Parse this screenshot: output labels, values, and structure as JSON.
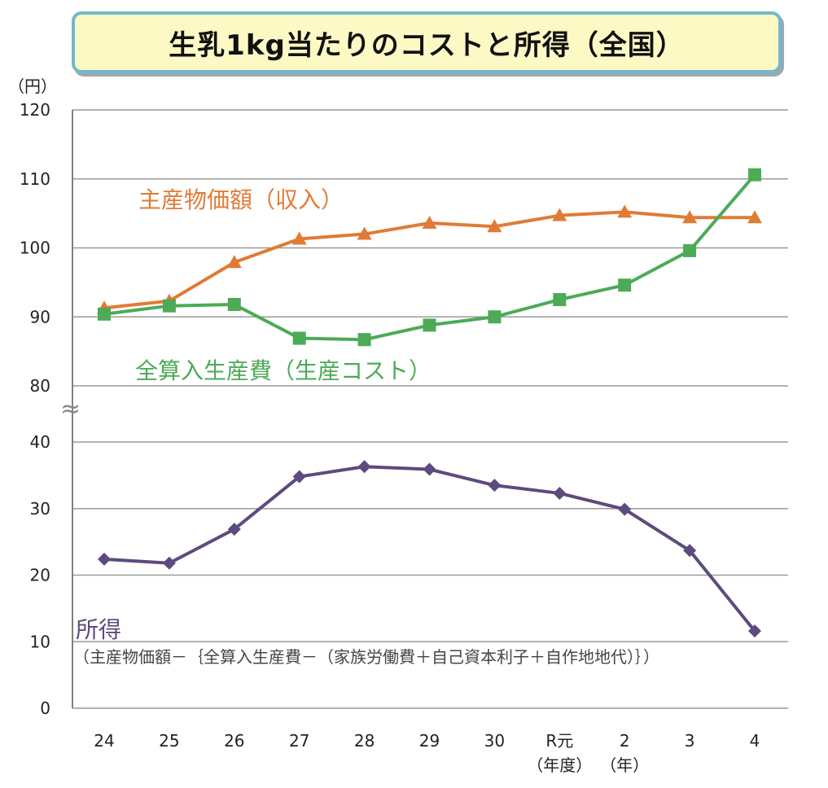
{
  "colors": {
    "income": "#e07b35",
    "cost": "#4daa57",
    "profit": "#5d4a7e",
    "grid": "#9a9a9a",
    "axis": "#808080"
  },
  "chart_data": {
    "type": "line",
    "title": "生乳1kg当たりのコストと所得（全国）",
    "ylabel": "（円）",
    "xlabel": "",
    "axis_break": "≈",
    "upper_ticks": [
      80,
      90,
      100,
      110,
      120
    ],
    "lower_ticks": [
      0,
      10,
      20,
      30,
      40
    ],
    "upper_ylim": [
      80,
      120
    ],
    "lower_ylim": [
      0,
      40
    ],
    "categories": [
      "24",
      "25",
      "26",
      "27",
      "28",
      "29",
      "30",
      "R元",
      "2",
      "3",
      "4"
    ],
    "category_sublabels": [
      "",
      "",
      "",
      "",
      "",
      "",
      "",
      "（年度）",
      "（年）",
      "",
      ""
    ],
    "series": [
      {
        "name": "主産物価額（収入）",
        "panel": "upper",
        "marker": "triangle",
        "color_key": "income",
        "values": [
          91.3,
          92.3,
          97.9,
          101.3,
          102.0,
          103.6,
          103.1,
          104.7,
          105.2,
          104.4,
          104.4
        ]
      },
      {
        "name": "全算入生産費（生産コスト）",
        "panel": "upper",
        "marker": "square",
        "color_key": "cost",
        "values": [
          90.4,
          91.6,
          91.8,
          86.9,
          86.7,
          88.8,
          90.0,
          92.5,
          94.6,
          99.6,
          110.6
        ]
      },
      {
        "name": "所得",
        "panel": "lower",
        "marker": "diamond",
        "color_key": "profit",
        "values": [
          22.4,
          21.8,
          26.9,
          34.8,
          36.3,
          35.9,
          33.5,
          32.3,
          29.9,
          23.7,
          11.6
        ]
      }
    ],
    "annotations": {
      "income_label": "主産物価額（収入）",
      "cost_label": "全算入生産費（生産コスト）",
      "profit_label": "所得",
      "profit_formula": "（主産物価額－｛全算入生産費－（家族労働費＋自己資本利子＋自作地地代）｝）"
    }
  }
}
